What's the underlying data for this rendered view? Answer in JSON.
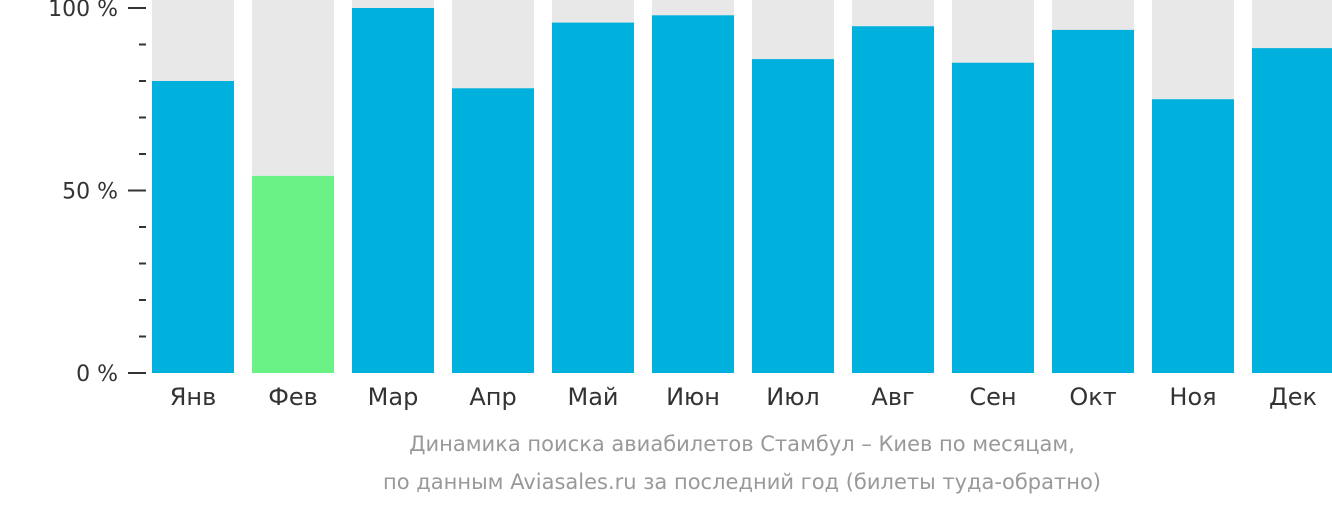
{
  "chart_data": {
    "type": "bar",
    "categories": [
      "Янв",
      "Фев",
      "Мар",
      "Апр",
      "Май",
      "Июн",
      "Июл",
      "Авг",
      "Сен",
      "Окт",
      "Ноя",
      "Дек"
    ],
    "values": [
      80,
      54,
      100,
      78,
      96,
      98,
      86,
      95,
      85,
      94,
      75,
      89
    ],
    "highlight_index": 1,
    "ylim": [
      0,
      100
    ],
    "yticks": [
      0,
      50,
      100
    ],
    "ytick_labels": [
      "0 %",
      "50 %",
      "100 %"
    ],
    "minor_ticks": [
      10,
      20,
      30,
      40,
      60,
      70,
      80,
      90
    ],
    "caption_line1": "Динамика поиска авиабилетов Стамбул – Киев по месяцам,",
    "caption_line2": "по данным Aviasales.ru за последний год (билеты туда-обратно)",
    "colors": {
      "bar": "#00b0dd",
      "highlight": "#6bf286",
      "background_bar": "#e8e8e8",
      "axis": "#333333",
      "text": "#333333",
      "caption": "#999999"
    }
  }
}
